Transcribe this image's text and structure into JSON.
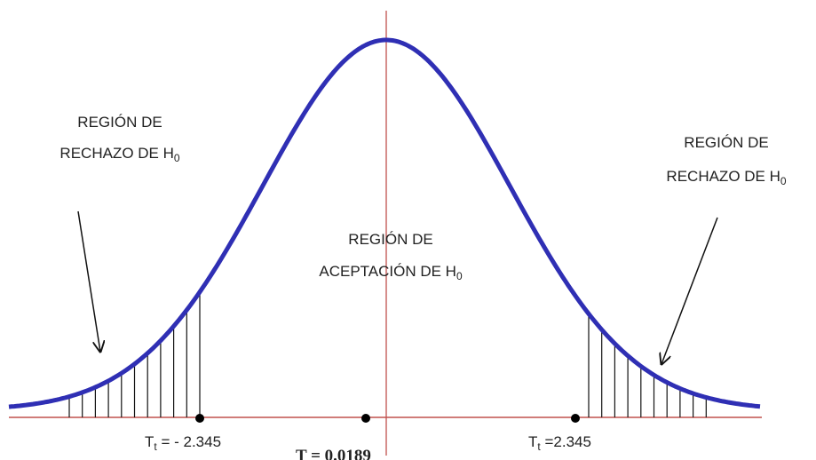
{
  "regions": [
    {
      "lines": [
        "REGIÓN DE",
        "RECHAZO DE H"
      ],
      "subscript": "0"
    },
    {
      "lines": [
        "REGIÓN DE",
        "ACEPTACIÓN DE H"
      ],
      "subscript": "0"
    },
    {
      "lines": [
        "REGIÓN DE",
        "RECHAZO DE H"
      ],
      "subscript": "0"
    }
  ],
  "points": [
    {
      "symbol": "T",
      "subscript": "t",
      "label": " = - 2.345"
    },
    {
      "symbol": "T",
      "label": " = 0.0189"
    },
    {
      "symbol": "T",
      "subscript": "t",
      "label": " =2.345"
    }
  ]
}
